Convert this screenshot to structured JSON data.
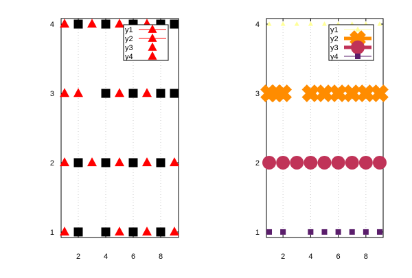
{
  "chart_data": [
    {
      "type": "scatter",
      "xlim": [
        0.75,
        9.3
      ],
      "ylim": [
        0.92,
        4.08
      ],
      "xticks": [
        "2",
        "4",
        "6",
        "8"
      ],
      "xtick_values": [
        2,
        4,
        6,
        8
      ],
      "yticks": [
        "1",
        "2",
        "3",
        "4"
      ],
      "ytick_values": [
        1,
        2,
        3,
        4
      ],
      "grid": "vertical dotted",
      "legend": "top-right",
      "series": [
        {
          "name": "y1",
          "color": "#ff0000",
          "marker": "triangle",
          "line": true,
          "points": [
            [
              1,
              4
            ],
            [
              3,
              4
            ],
            [
              5,
              4
            ],
            [
              7,
              4
            ],
            [
              1,
              3
            ],
            [
              2,
              3
            ],
            [
              5,
              3
            ],
            [
              7,
              3
            ],
            [
              1,
              2
            ],
            [
              3,
              2
            ],
            [
              5,
              2
            ],
            [
              7,
              2
            ],
            [
              9,
              2
            ],
            [
              1,
              1
            ],
            [
              5,
              1
            ],
            [
              7,
              1
            ],
            [
              9,
              1
            ]
          ]
        },
        {
          "name": "y2",
          "color": "#ff0000",
          "marker": "triangle",
          "line": true,
          "points": []
        },
        {
          "name": "y3",
          "color": "#ff0000",
          "marker": "triangle",
          "line": false,
          "points": []
        },
        {
          "name": "y4",
          "color": "#ff0000",
          "marker": "triangle",
          "line": false,
          "points": []
        },
        {
          "name": "",
          "color": "#000000",
          "marker": "square",
          "line": false,
          "points": [
            [
              2,
              4
            ],
            [
              4,
              4
            ],
            [
              6,
              4
            ],
            [
              8,
              4
            ],
            [
              9,
              4
            ],
            [
              4,
              3
            ],
            [
              6,
              3
            ],
            [
              8,
              3
            ],
            [
              9,
              3
            ],
            [
              2,
              2
            ],
            [
              4,
              2
            ],
            [
              6,
              2
            ],
            [
              8,
              2
            ],
            [
              2,
              1
            ],
            [
              4,
              1
            ],
            [
              6,
              1
            ],
            [
              8,
              1
            ]
          ]
        }
      ]
    },
    {
      "type": "scatter",
      "xlim": [
        0.8,
        9.25
      ],
      "ylim": [
        0.92,
        4.08
      ],
      "xticks": [
        "2",
        "4",
        "6",
        "8"
      ],
      "xtick_values": [
        2,
        4,
        6,
        8
      ],
      "yticks": [
        "1",
        "2",
        "3",
        "4"
      ],
      "ytick_values": [
        1,
        2,
        3,
        4
      ],
      "grid": "vertical dotted",
      "legend": "top-right",
      "series": [
        {
          "name": "y1",
          "color": "#ffff99",
          "marker": "triangle",
          "size": "small",
          "line": true,
          "points": [
            [
              1,
              4
            ],
            [
              2,
              4
            ],
            [
              3,
              4
            ],
            [
              4,
              4
            ],
            [
              5,
              4
            ],
            [
              6,
              4
            ],
            [
              7,
              4
            ],
            [
              8,
              4
            ],
            [
              9,
              4
            ]
          ]
        },
        {
          "name": "y2",
          "color": "#ff8c00",
          "marker": "cross",
          "size": "large",
          "line": true,
          "points": [
            [
              1,
              3
            ],
            [
              1.5,
              3
            ],
            [
              2,
              3
            ],
            [
              4,
              3
            ],
            [
              5,
              3
            ],
            [
              6,
              3
            ],
            [
              7,
              3
            ],
            [
              8,
              3
            ],
            [
              9,
              3
            ]
          ]
        },
        {
          "name": "y3",
          "color": "#c03358",
          "marker": "circle",
          "size": "large",
          "line": true,
          "points": [
            [
              1,
              2
            ],
            [
              2,
              2
            ],
            [
              3,
              2
            ],
            [
              4,
              2
            ],
            [
              5,
              2
            ],
            [
              6,
              2
            ],
            [
              7,
              2
            ],
            [
              8,
              2
            ],
            [
              9,
              2
            ]
          ]
        },
        {
          "name": "y4",
          "color": "#5a1d6b",
          "marker": "square",
          "size": "small",
          "line": true,
          "points": [
            [
              1,
              1
            ],
            [
              2,
              1
            ],
            [
              4,
              1
            ],
            [
              5,
              1
            ],
            [
              6,
              1
            ],
            [
              7,
              1
            ],
            [
              8,
              1
            ],
            [
              9,
              1
            ]
          ]
        }
      ]
    }
  ]
}
